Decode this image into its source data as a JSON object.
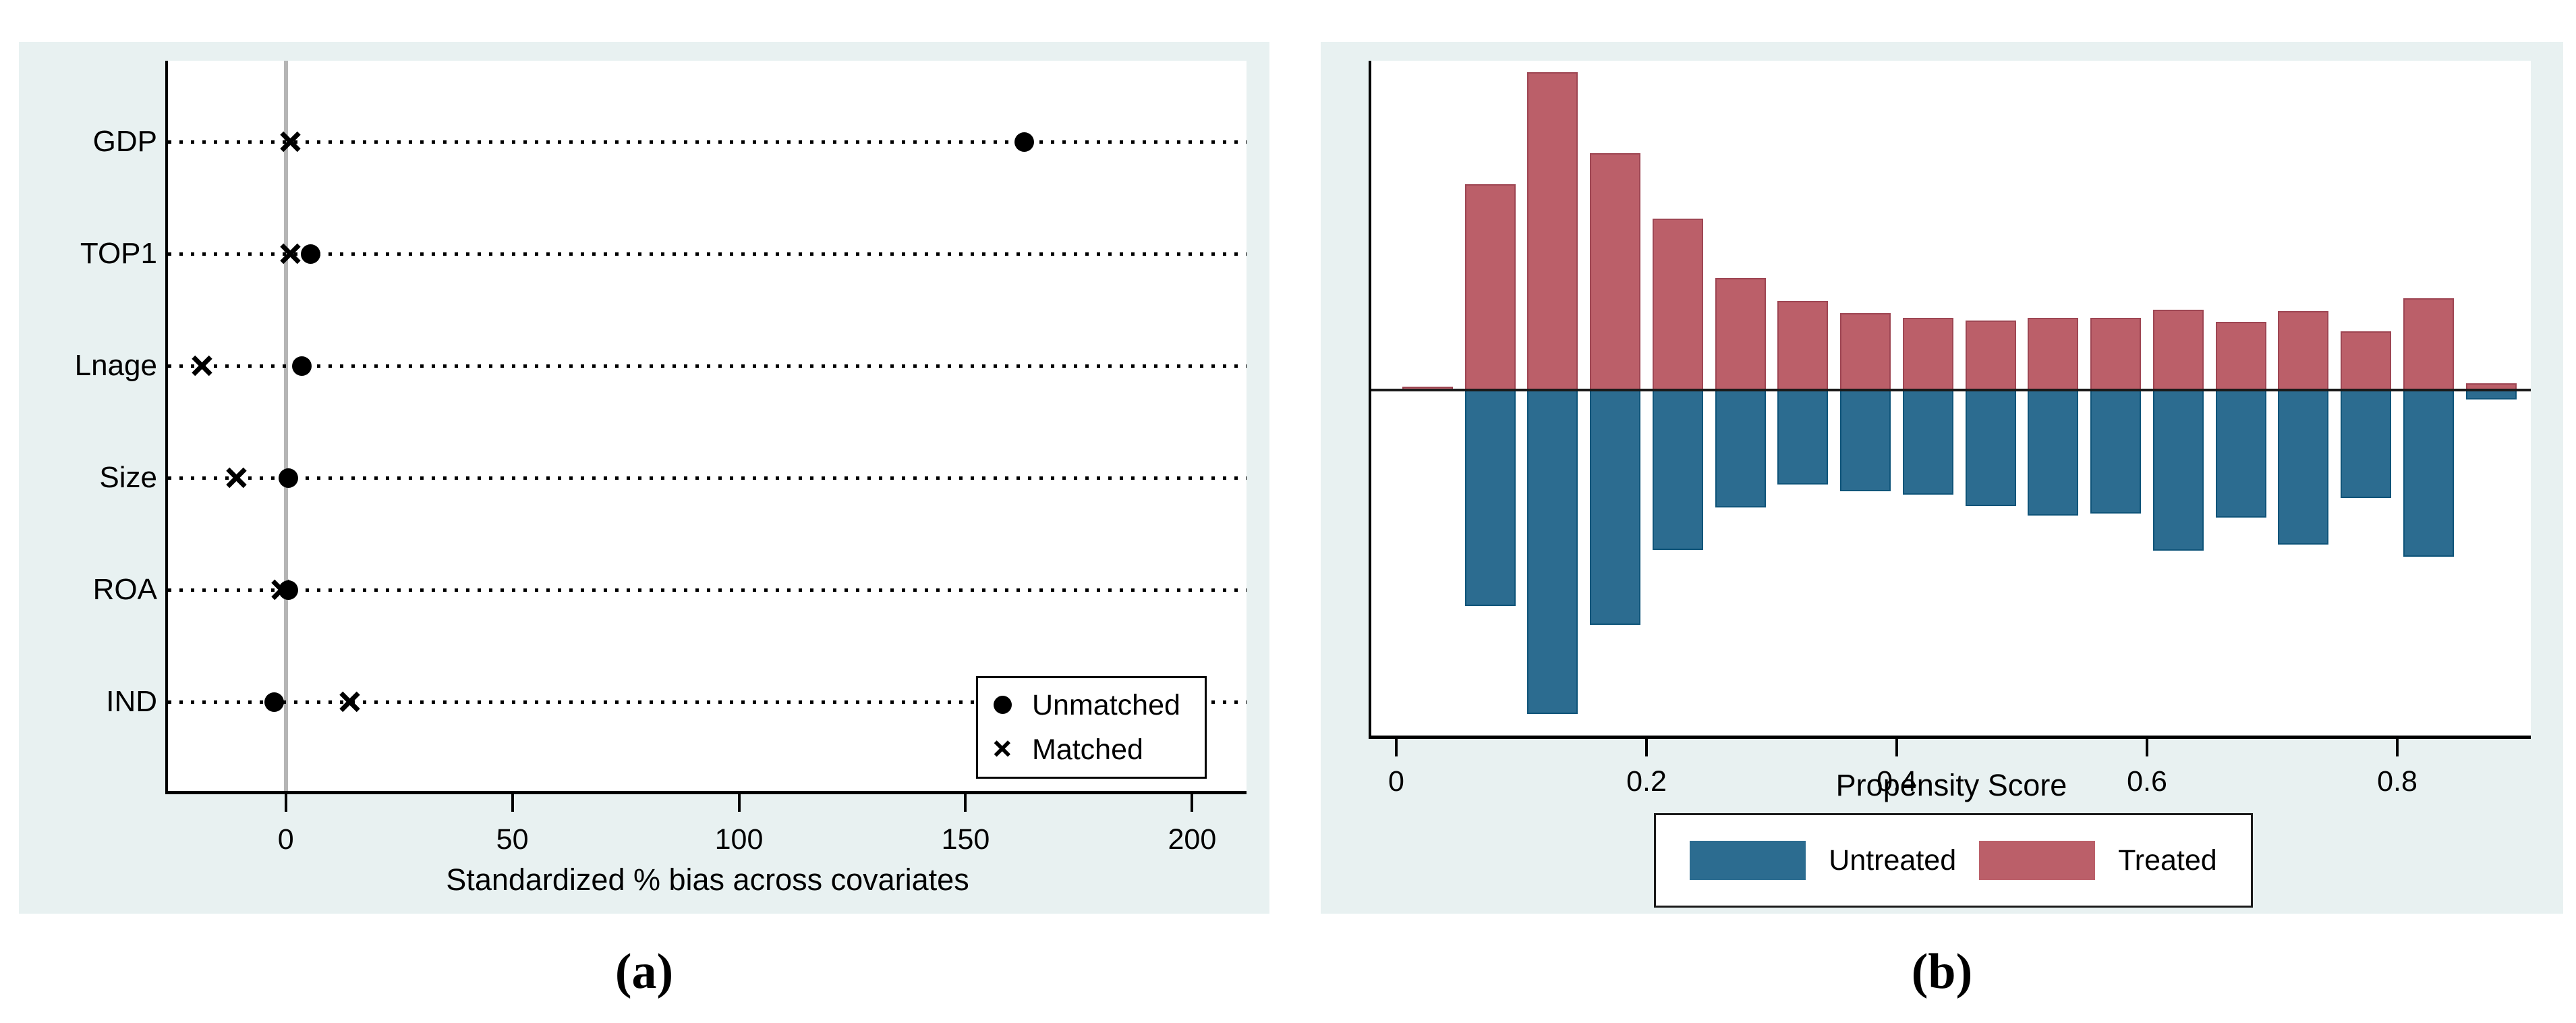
{
  "colors": {
    "panel_bg": "#e8f1f1",
    "treated_fill": "#bb5f69",
    "treated_border": "#9e4653",
    "untreated_fill": "#2c6c90",
    "untreated_border": "#0f5479",
    "zero_line_gray": "#b5b5b5",
    "axis_black": "#000000"
  },
  "panel_a": {
    "caption": "(a)",
    "x_axis_title": "Standardized % bias across covariates",
    "x_tick_labels": [
      "0",
      "50",
      "100",
      "150",
      "200"
    ],
    "x_tick_values": [
      0,
      50,
      100,
      150,
      200
    ],
    "categories": [
      "GDP",
      "TOP1",
      "Lnage",
      "Size",
      "ROA",
      "IND"
    ],
    "legend": [
      {
        "marker": "dot",
        "label": "Unmatched"
      },
      {
        "marker": "x",
        "label": "Matched"
      }
    ]
  },
  "panel_b": {
    "caption": "(b)",
    "x_axis_title": "Propensity Score",
    "x_tick_labels": [
      "0",
      "0.2",
      "0.4",
      "0.6",
      "0.8"
    ],
    "x_tick_values": [
      0,
      0.2,
      0.4,
      0.6,
      0.8
    ],
    "legend": [
      {
        "series": "untreated",
        "label": "Untreated"
      },
      {
        "series": "treated",
        "label": "Treated"
      }
    ]
  },
  "chart_data": [
    {
      "type": "scatter",
      "title": "",
      "xlabel": "Standardized % bias across covariates",
      "ylabel": "",
      "categories": [
        "GDP",
        "TOP1",
        "Lnage",
        "Size",
        "ROA",
        "IND"
      ],
      "xlim": [
        -26,
        212
      ],
      "x_ticks": [
        0,
        50,
        100,
        150,
        200
      ],
      "grid": "dotted horizontal leader lines per category, gray vertical reference line at 0",
      "legend_position": "inside lower right",
      "series": [
        {
          "name": "Unmatched",
          "marker": "filled circle",
          "values": [
            163,
            5.5,
            3.5,
            0.5,
            0.5,
            -2.5
          ]
        },
        {
          "name": "Matched",
          "marker": "x",
          "values": [
            1,
            1,
            -18.5,
            -11,
            -1,
            14
          ]
        }
      ]
    },
    {
      "type": "bar",
      "title": "",
      "xlabel": "Propensity Score",
      "ylabel": "",
      "note": "mirrored histogram: Treated drawn upward, Untreated drawn downward from a common baseline; no y-axis labels in source, values are heights relative to tallest treated bar = 1.0",
      "bin_width": 0.05,
      "x": [
        0.025,
        0.075,
        0.125,
        0.175,
        0.225,
        0.275,
        0.325,
        0.375,
        0.425,
        0.475,
        0.525,
        0.575,
        0.625,
        0.675,
        0.725,
        0.775,
        0.825,
        0.875
      ],
      "x_ticks": [
        0,
        0.2,
        0.4,
        0.6,
        0.8
      ],
      "xlim": [
        -0.02,
        0.906
      ],
      "legend_position": "below axis, centered",
      "series": [
        {
          "name": "Treated",
          "direction": "up",
          "values": [
            0.011,
            0.648,
            1.0,
            0.745,
            0.539,
            0.352,
            0.28,
            0.242,
            0.227,
            0.219,
            0.227,
            0.227,
            0.253,
            0.214,
            0.248,
            0.185,
            0.289,
            0.021
          ]
        },
        {
          "name": "Untreated",
          "direction": "down",
          "values": [
            0.0,
            0.679,
            1.019,
            0.739,
            0.503,
            0.369,
            0.297,
            0.318,
            0.329,
            0.365,
            0.395,
            0.389,
            0.505,
            0.401,
            0.486,
            0.34,
            0.524,
            0.03
          ]
        }
      ]
    }
  ]
}
